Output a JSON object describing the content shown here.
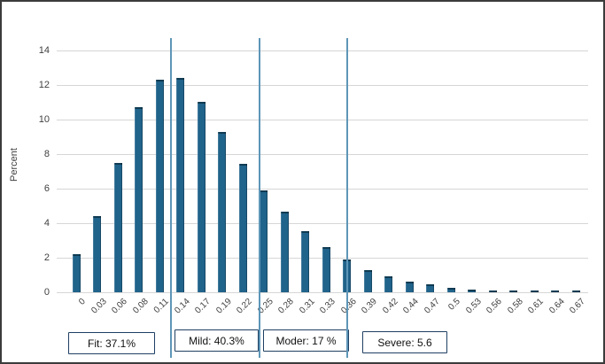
{
  "chart_data": {
    "type": "bar",
    "title": "",
    "xlabel": "",
    "ylabel": "Percent",
    "ylim": [
      0,
      14
    ],
    "y_ticks": [
      0,
      2,
      4,
      6,
      8,
      10,
      12,
      14
    ],
    "grid": "horizontal",
    "legend": "none",
    "categories": [
      "0",
      "0.03",
      "0.06",
      "0.08",
      "0.11",
      "0.14",
      "0.17",
      "0.19",
      "0.22",
      "0.25",
      "0.28",
      "0.31",
      "0.33",
      "0.36",
      "0.39",
      "0.42",
      "0.44",
      "0.47",
      "0.5",
      "0.53",
      "0.56",
      "0.58",
      "0.61",
      "0.64",
      "0.67"
    ],
    "values": [
      2.2,
      4.4,
      7.5,
      10.7,
      12.3,
      12.4,
      11.05,
      9.3,
      7.45,
      5.9,
      4.65,
      3.55,
      2.6,
      1.9,
      1.3,
      0.9,
      0.6,
      0.45,
      0.25,
      0.15,
      0.1,
      0.1,
      0.08,
      0.1,
      0.08
    ],
    "bar_color": "#20638B",
    "bar_cap_color": "#0F3B53",
    "grid_color": "#D6D6D6",
    "axis_text_color": "#3F3F3F",
    "reference_line_color": "#5E96B8",
    "reference_lines": [
      {
        "between_categories": "0.11 | 0.14",
        "at_category_index": 4.55
      },
      {
        "between_categories": "0.22 | 0.25",
        "at_category_index": 8.8
      },
      {
        "at_category": "0.36",
        "at_category_index": 13.0
      }
    ],
    "annotations": [
      {
        "label": "Fit: 37.1%"
      },
      {
        "label": "Mild: 40.3%"
      },
      {
        "label": "Moder: 17 %"
      },
      {
        "label": "Severe: 5.6"
      }
    ]
  }
}
